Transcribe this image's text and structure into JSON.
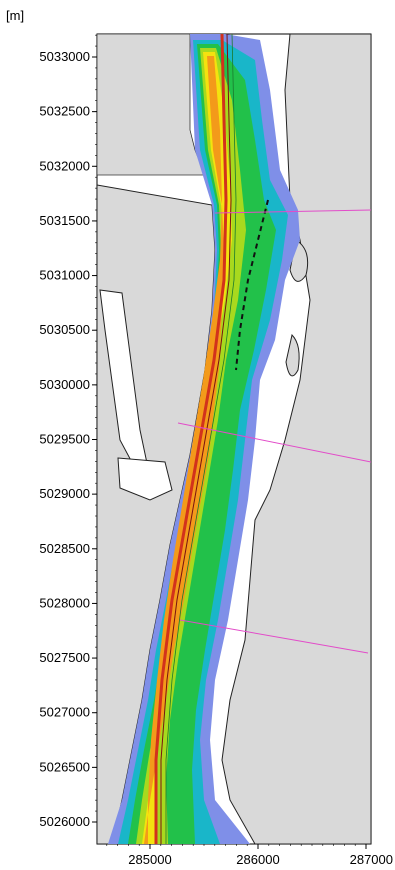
{
  "map": {
    "unit_label": "[m]",
    "y_axis": {
      "ticks": [
        5033000,
        5032500,
        5032000,
        5031500,
        5031000,
        5030500,
        5030000,
        5029500,
        5029000,
        5028500,
        5028000,
        5027500,
        5027000,
        5026500,
        5026000
      ],
      "tick_labels": [
        "5033000",
        "5032500",
        "5032000",
        "5031500",
        "5031000",
        "5030500",
        "5030000",
        "5029500",
        "5029000",
        "5028500",
        "5028000",
        "5027500",
        "5027000",
        "5026500",
        "5026000"
      ],
      "range": [
        5025800,
        5033250
      ]
    },
    "x_axis": {
      "ticks": [
        285000,
        286000,
        287000
      ],
      "tick_labels": [
        "285000",
        "286000",
        "287000"
      ],
      "range": [
        284500,
        287000
      ]
    },
    "colors": {
      "land": "#d9d9d9",
      "deep_blue": "#1f3ad1",
      "light_blue": "#7f8fe8",
      "cyan": "#19b6c9",
      "green": "#22c14a",
      "yellow_green": "#a8d91e",
      "yellow": "#f4e20f",
      "orange": "#f39a1a",
      "red": "#d2321c",
      "dark_red": "#7a1111",
      "section_line": "#e24cc9"
    }
  }
}
